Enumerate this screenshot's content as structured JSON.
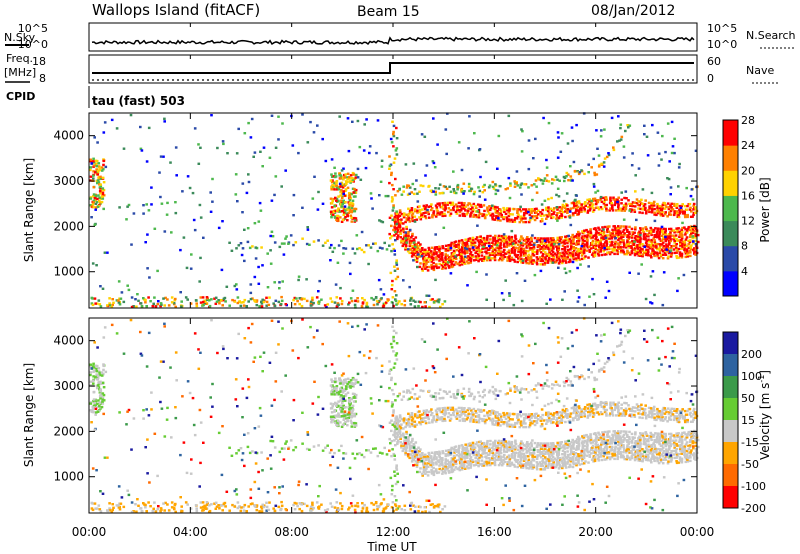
{
  "header": {
    "station": "Wallops Island (fitACF)",
    "beam": "Beam 15",
    "date": "08/Jan/2012"
  },
  "sky_panel": {
    "left_label": "N.Sky",
    "right_label": "N.Search",
    "left_ticks": [
      "10^5",
      "10^0"
    ],
    "right_ticks": [
      "10^5",
      "10^0"
    ]
  },
  "freq_panel": {
    "left_label_1": "Freq.",
    "left_label_2": "[MHz]",
    "right_label": "Nave",
    "left_ticks": [
      "18",
      "8"
    ],
    "right_ticks": [
      "60",
      "0"
    ]
  },
  "cpid_panel": {
    "label": "CPID",
    "text": "tau (fast) 503"
  },
  "chart_data": [
    {
      "type": "heatmap",
      "quantity": "Power",
      "ylabel": "Slant Range [km]",
      "ylim": [
        200,
        4500
      ],
      "yticks": [
        "1000",
        "2000",
        "3000",
        "4000"
      ],
      "colorbar": {
        "label": "Power [dB]",
        "ticks": [
          "4",
          "8",
          "12",
          "16",
          "20",
          "24",
          "28"
        ],
        "colors": [
          "#0000ff",
          "#2a4aa8",
          "#3b8a5a",
          "#4db84d",
          "#ffd200",
          "#ff8000",
          "#ff0000"
        ]
      }
    },
    {
      "type": "heatmap",
      "quantity": "Velocity",
      "ylabel": "Slant Range [km]",
      "ylim": [
        200,
        4500
      ],
      "yticks": [
        "1000",
        "2000",
        "3000",
        "4000"
      ],
      "colorbar": {
        "label": "Velocity [m s^-1]",
        "ticks": [
          "200",
          "100",
          "50",
          "15",
          "-15",
          "-50",
          "-100",
          "-200"
        ],
        "colors": [
          "#1a1aa0",
          "#2e63a0",
          "#3b9a4a",
          "#66cc33",
          "#c8c8c8",
          "#ffa500",
          "#ff6a00",
          "#ff0000"
        ]
      }
    }
  ],
  "xaxis": {
    "label": "Time UT",
    "ticks": [
      "00:00",
      "04:00",
      "08:00",
      "12:00",
      "16:00",
      "20:00",
      "00:00"
    ],
    "xlim_hours": [
      0,
      24
    ]
  }
}
